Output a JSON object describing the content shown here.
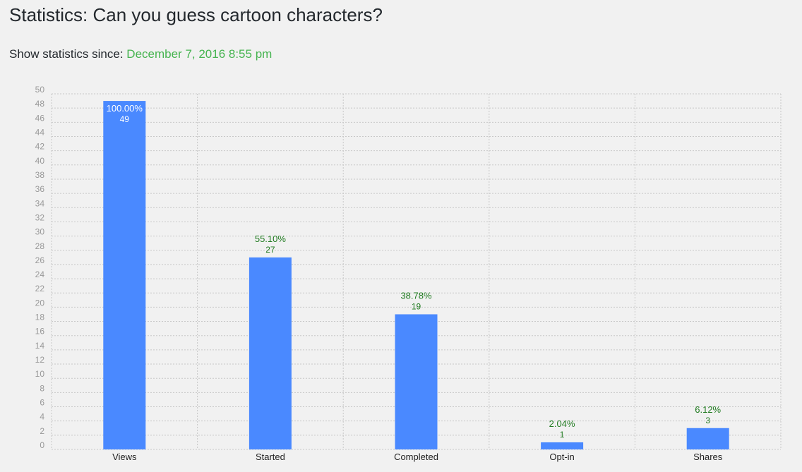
{
  "header": {
    "title": "Statistics: Can you guess cartoon characters?"
  },
  "filter": {
    "label": "Show statistics since:",
    "date": "December 7, 2016 8:55 pm"
  },
  "colors": {
    "bar": "#4a89ff",
    "label_first": "#ffffff",
    "label_other": "#1f7a1f",
    "grid": "#c8c8c8",
    "tick": "#999999",
    "category": "#222222",
    "date": "#46b450"
  },
  "chart_data": {
    "type": "bar",
    "categories": [
      "Views",
      "Started",
      "Completed",
      "Opt-in",
      "Shares"
    ],
    "values": [
      49,
      27,
      19,
      1,
      3
    ],
    "percent_labels": [
      "100.00%",
      "55.10%",
      "38.78%",
      "2.04%",
      "6.12%"
    ],
    "value_labels": [
      "49",
      "27",
      "19",
      "1",
      "3"
    ],
    "ylim": [
      0,
      50
    ],
    "ytick_step": 2,
    "grid": true,
    "title": "",
    "xlabel": "",
    "ylabel": ""
  }
}
